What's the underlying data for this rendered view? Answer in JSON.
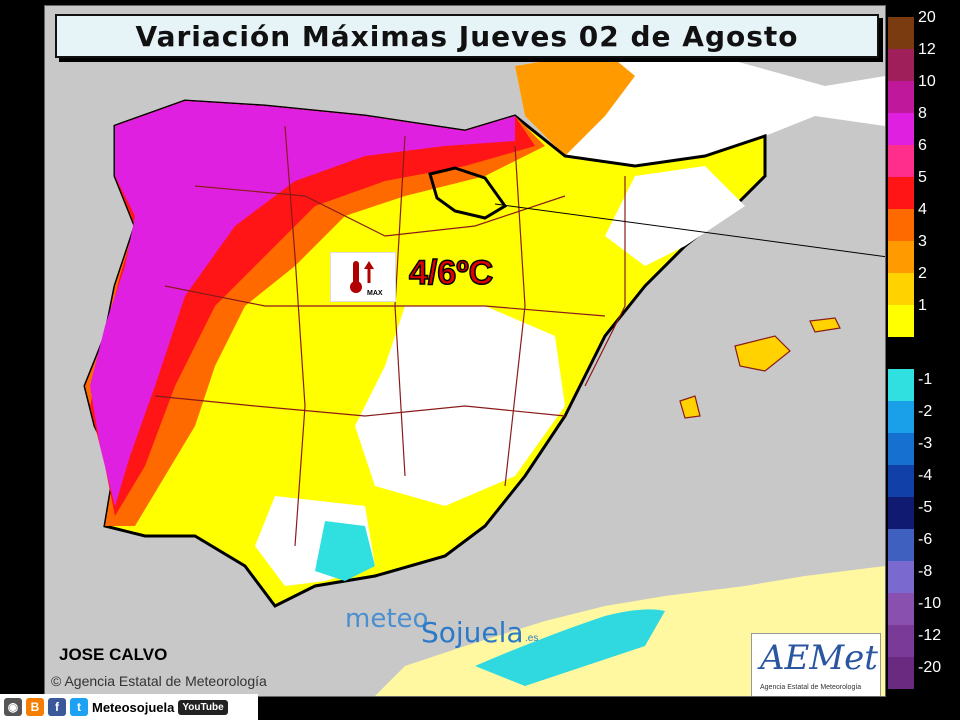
{
  "title": "Variación Máximas Jueves 02 de Agosto",
  "badge": {
    "icon": "thermometer-up-icon",
    "label": "MAX",
    "range_text": "4/6ºC"
  },
  "watermark": {
    "part1": "meteo",
    "part2": "Sojuela",
    "suffix": ".es"
  },
  "author": "JOSE CALVO",
  "agency": "Agencia Estatal de Meteorología",
  "agency_symbol": "©",
  "logo": {
    "text": "AEMet",
    "subtitle": "Agencia Estatal de Meteorología"
  },
  "legend": [
    {
      "label": "20",
      "color": "#7a3b10"
    },
    {
      "label": "12",
      "color": "#9e1f5a"
    },
    {
      "label": "10",
      "color": "#c0189a"
    },
    {
      "label": "8",
      "color": "#e020e0"
    },
    {
      "label": "6",
      "color": "#ff2d8c"
    },
    {
      "label": "5",
      "color": "#ff1515"
    },
    {
      "label": "4",
      "color": "#ff6a00"
    },
    {
      "label": "3",
      "color": "#ff9a00"
    },
    {
      "label": "2",
      "color": "#ffd200"
    },
    {
      "label": "1",
      "color": "#ffff00"
    },
    {
      "label": "-1",
      "color": "#30e0e0"
    },
    {
      "label": "-2",
      "color": "#1aa0e8"
    },
    {
      "label": "-3",
      "color": "#1670d0"
    },
    {
      "label": "-4",
      "color": "#1040a8"
    },
    {
      "label": "-5",
      "color": "#101a70"
    },
    {
      "label": "-6",
      "color": "#4060c0"
    },
    {
      "label": "-8",
      "color": "#7a6ad0"
    },
    {
      "label": "-10",
      "color": "#8a50b0"
    },
    {
      "label": "-12",
      "color": "#7a3a98"
    },
    {
      "label": "-20",
      "color": "#6a2a80"
    }
  ],
  "social": {
    "handle": "Meteosojuela",
    "youtube": "YouTube"
  }
}
